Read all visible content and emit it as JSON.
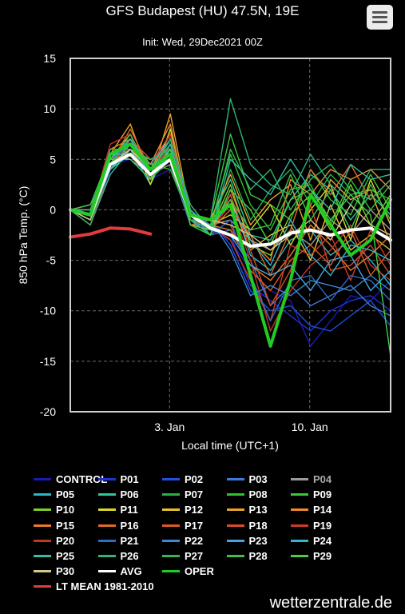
{
  "header": {
    "title": "GFS Budapest (HU) 47.5N, 19E",
    "subtitle": "Init: Wed, 29Dec2021 00Z"
  },
  "menu": {
    "icon": "hamburger-menu-icon"
  },
  "credit": "wetterzentrale.de",
  "chart_data": {
    "type": "line",
    "title": "GFS Budapest (HU) 47.5N, 19E",
    "subtitle": "Init: Wed, 29Dec2021 00Z",
    "xlabel": "Local time (UTC+1)",
    "ylabel": "850 hPa Temp. (°C)",
    "xlim": [
      "2021-12-29 01:00",
      "2022-01-14 01:00"
    ],
    "ylim": [
      -20,
      15
    ],
    "yticks": [
      15,
      10,
      5,
      0,
      -5,
      -10,
      -15,
      -20
    ],
    "xticks": [
      {
        "value": "2022-01-03",
        "label": "3. Jan"
      },
      {
        "value": "2022-01-10",
        "label": "10. Jan"
      }
    ],
    "grid": true,
    "legend_position": "bottom",
    "x": [
      "12-29",
      "12-30",
      "12-31",
      "01-01",
      "01-02",
      "01-03",
      "01-04",
      "01-05",
      "01-06",
      "01-07",
      "01-08",
      "01-09",
      "01-10",
      "01-11",
      "01-12",
      "01-13",
      "01-14"
    ],
    "oper": {
      "name": "OPER",
      "color": "#22cc22",
      "values": [
        0,
        -0.5,
        5.5,
        6.5,
        4.0,
        5.5,
        -0.5,
        -1.0,
        0.5,
        -6.5,
        -13.5,
        -7.0,
        1.5,
        -1.5,
        -4.5,
        -3.0,
        1.0
      ]
    },
    "avg": {
      "name": "AVG",
      "color": "#ffffff",
      "values": [
        0,
        -0.5,
        4.5,
        5.5,
        3.5,
        5.0,
        -0.5,
        -1.8,
        -2.5,
        -3.6,
        -3.4,
        -2.3,
        -2.0,
        -2.5,
        -2.0,
        -1.8,
        -3.0
      ]
    },
    "lt_mean": {
      "name": "LT MEAN 1981-2010",
      "color": "#e23b3b",
      "x": [
        "12-29",
        "12-30",
        "12-31",
        "01-01",
        "01-02"
      ],
      "values": [
        -2.7,
        -2.4,
        -1.8,
        -1.9,
        -2.4
      ]
    },
    "series": [
      {
        "name": "CONTROL",
        "color": "#1b1bb3",
        "values": [
          0,
          -1.0,
          4.5,
          5.0,
          3.0,
          4.0,
          -1.0,
          -2.0,
          -3.0,
          -6.0,
          -8.0,
          -9.0,
          -13.5,
          -11.0,
          -8.5,
          -9.0,
          -7.0
        ]
      },
      {
        "name": "P01",
        "color": "#1d33d6",
        "values": [
          0,
          -0.5,
          4.0,
          6.0,
          3.5,
          5.5,
          0.0,
          -1.5,
          -2.5,
          -7.5,
          -9.0,
          -10.5,
          -12.0,
          -10.0,
          -9.0,
          -8.5,
          -10.0
        ]
      },
      {
        "name": "P02",
        "color": "#2050e0",
        "values": [
          0,
          -1.0,
          5.0,
          5.5,
          4.0,
          6.0,
          -1.0,
          -1.0,
          -3.5,
          -8.0,
          -10.0,
          -9.5,
          -11.5,
          -12.0,
          -10.5,
          -9.0,
          -11.5
        ]
      },
      {
        "name": "P03",
        "color": "#3b7bd8",
        "values": [
          0,
          0.0,
          4.5,
          6.5,
          4.5,
          5.0,
          -0.5,
          -2.5,
          -2.0,
          -5.0,
          -9.5,
          -7.5,
          -9.5,
          -8.5,
          -7.5,
          -9.5,
          -10.5
        ]
      },
      {
        "name": "P04",
        "color": "#9a9a9a",
        "values": [
          0,
          -0.5,
          5.5,
          5.0,
          3.5,
          4.5,
          -1.5,
          -1.5,
          -1.0,
          -3.0,
          -4.0,
          -2.0,
          -3.5,
          -1.0,
          -2.5,
          0.0,
          -2.0
        ]
      },
      {
        "name": "P05",
        "color": "#29b8c8",
        "values": [
          0,
          -1.5,
          3.5,
          6.0,
          2.5,
          6.5,
          -1.0,
          -2.0,
          1.5,
          -4.5,
          -6.0,
          -3.0,
          -2.0,
          -4.5,
          -3.0,
          -5.0,
          -7.5
        ]
      },
      {
        "name": "P06",
        "color": "#2ec79a",
        "values": [
          0,
          -0.5,
          4.0,
          5.5,
          4.0,
          7.0,
          -0.5,
          -1.0,
          3.0,
          -2.5,
          -3.0,
          1.0,
          3.5,
          2.0,
          -1.0,
          1.5,
          -0.5
        ]
      },
      {
        "name": "P07",
        "color": "#27b04a",
        "values": [
          0,
          0.0,
          5.0,
          7.0,
          3.0,
          5.0,
          0.0,
          -2.5,
          4.0,
          -1.0,
          2.0,
          4.0,
          0.5,
          3.5,
          1.5,
          2.0,
          1.0
        ]
      },
      {
        "name": "P08",
        "color": "#30c030",
        "values": [
          0,
          -1.0,
          4.5,
          6.5,
          4.5,
          4.0,
          -1.0,
          -1.5,
          5.5,
          0.5,
          -2.0,
          2.0,
          2.5,
          -1.5,
          3.0,
          0.0,
          2.5
        ]
      },
      {
        "name": "P09",
        "color": "#38c838",
        "values": [
          0,
          -0.5,
          5.5,
          5.5,
          5.0,
          5.5,
          -0.5,
          -1.0,
          7.5,
          1.5,
          0.5,
          -1.0,
          4.0,
          1.0,
          -0.5,
          3.5,
          0.0
        ]
      },
      {
        "name": "P10",
        "color": "#7fcc2a",
        "values": [
          0,
          0.5,
          4.0,
          6.0,
          3.5,
          6.0,
          -1.5,
          -2.0,
          2.5,
          -3.5,
          -4.5,
          -0.5,
          1.5,
          -2.0,
          2.5,
          -1.5,
          1.5
        ]
      },
      {
        "name": "P11",
        "color": "#d8d82a",
        "values": [
          0,
          -0.5,
          5.0,
          7.5,
          2.5,
          8.0,
          -1.0,
          -1.5,
          -0.5,
          -2.0,
          0.5,
          -3.5,
          0.0,
          2.5,
          -3.0,
          3.0,
          -1.5
        ]
      },
      {
        "name": "P12",
        "color": "#e6c12e",
        "values": [
          0,
          -1.0,
          4.5,
          6.0,
          4.0,
          7.5,
          0.0,
          -2.0,
          1.0,
          -4.0,
          -2.5,
          -1.5,
          -5.0,
          0.5,
          -4.0,
          -2.5,
          -4.0
        ]
      },
      {
        "name": "P13",
        "color": "#e8a22c",
        "values": [
          0,
          0.0,
          5.5,
          8.5,
          3.0,
          9.5,
          -0.5,
          -1.0,
          3.5,
          -1.5,
          1.0,
          2.5,
          -3.0,
          3.0,
          1.0,
          2.0,
          -3.5
        ]
      },
      {
        "name": "P14",
        "color": "#eb8a2a",
        "values": [
          0,
          -0.5,
          6.0,
          7.0,
          4.5,
          8.5,
          -1.0,
          -2.5,
          2.0,
          -3.0,
          -5.0,
          3.0,
          1.5,
          4.0,
          3.0,
          4.0,
          2.0
        ]
      },
      {
        "name": "P15",
        "color": "#e87a2a",
        "values": [
          0,
          -1.0,
          5.0,
          5.5,
          3.5,
          6.5,
          -0.5,
          -1.5,
          -2.0,
          -5.5,
          -7.0,
          -4.5,
          -1.5,
          -3.5,
          -6.0,
          -4.5,
          -2.5
        ]
      },
      {
        "name": "P16",
        "color": "#e06a2a",
        "values": [
          0,
          0.5,
          4.5,
          8.0,
          4.0,
          7.0,
          0.0,
          -2.0,
          0.0,
          -2.5,
          -6.5,
          -2.0,
          4.0,
          1.5,
          4.5,
          1.0,
          3.0
        ]
      },
      {
        "name": "P17",
        "color": "#dc5a28",
        "values": [
          0,
          -0.5,
          5.5,
          6.5,
          3.0,
          6.0,
          -1.5,
          -1.0,
          -1.5,
          -6.0,
          -8.0,
          -5.0,
          -3.5,
          -5.5,
          -2.0,
          -6.5,
          -4.0
        ]
      },
      {
        "name": "P18",
        "color": "#d84c28",
        "values": [
          0,
          -1.5,
          4.0,
          7.0,
          5.0,
          5.5,
          -1.0,
          -2.5,
          1.5,
          -4.0,
          -9.5,
          -6.0,
          0.5,
          -6.0,
          -5.5,
          -3.5,
          -6.5
        ]
      },
      {
        "name": "P19",
        "color": "#cc3c28",
        "values": [
          0,
          0.0,
          5.0,
          6.0,
          4.5,
          7.5,
          -0.5,
          -1.5,
          -3.0,
          -7.0,
          -11.0,
          -3.5,
          -4.5,
          -2.5,
          -7.0,
          -2.0,
          -5.5
        ]
      },
      {
        "name": "P20",
        "color": "#c63428",
        "values": [
          0,
          -0.5,
          6.5,
          7.5,
          3.5,
          6.5,
          0.5,
          -2.0,
          0.5,
          -5.0,
          -12.0,
          -8.0,
          -5.5,
          -4.0,
          -1.5,
          -5.5,
          -7.0
        ]
      },
      {
        "name": "P21",
        "color": "#2d6cc8",
        "values": [
          0,
          -1.0,
          5.0,
          6.5,
          4.0,
          5.0,
          -1.5,
          -2.5,
          -1.0,
          -6.5,
          -11.0,
          -7.0,
          -6.5,
          -9.0,
          -6.5,
          -7.0,
          -9.0
        ]
      },
      {
        "name": "P22",
        "color": "#3a8ad6",
        "values": [
          0,
          0.5,
          4.5,
          7.0,
          3.0,
          6.0,
          -1.0,
          -1.0,
          -4.0,
          -8.5,
          -7.5,
          -8.5,
          -7.0,
          -7.5,
          -8.0,
          -6.5,
          -8.0
        ]
      },
      {
        "name": "P23",
        "color": "#45a3de",
        "values": [
          0,
          -0.5,
          5.5,
          5.5,
          4.5,
          7.0,
          0.0,
          -2.0,
          -2.5,
          -5.5,
          -6.5,
          -5.5,
          -8.0,
          -5.0,
          -4.5,
          -8.0,
          -6.0
        ]
      },
      {
        "name": "P24",
        "color": "#33b5d0",
        "values": [
          0,
          -1.0,
          4.0,
          6.5,
          3.5,
          5.5,
          -0.5,
          -1.5,
          0.5,
          -3.0,
          -5.5,
          -1.0,
          -4.5,
          -6.5,
          -3.5,
          -4.0,
          -5.0
        ]
      },
      {
        "name": "P25",
        "color": "#2fbfa8",
        "values": [
          0,
          0.0,
          5.0,
          7.0,
          4.0,
          6.5,
          -1.0,
          -2.5,
          5.0,
          3.0,
          1.5,
          5.0,
          2.0,
          0.0,
          4.5,
          3.0,
          3.5
        ]
      },
      {
        "name": "P26",
        "color": "#2fb577",
        "values": [
          0,
          -0.5,
          6.0,
          6.0,
          5.0,
          6.0,
          -0.5,
          -1.0,
          11.0,
          4.5,
          2.5,
          1.5,
          5.5,
          2.5,
          0.5,
          4.0,
          4.0
        ]
      },
      {
        "name": "P27",
        "color": "#32b855",
        "values": [
          0,
          -1.5,
          4.5,
          7.5,
          3.5,
          7.0,
          0.5,
          -2.0,
          6.0,
          2.0,
          4.0,
          0.0,
          3.0,
          4.5,
          2.0,
          1.0,
          3.0
        ]
      },
      {
        "name": "P28",
        "color": "#3cc04a",
        "values": [
          0,
          0.5,
          5.5,
          6.5,
          4.5,
          5.0,
          -1.0,
          -1.5,
          1.0,
          -2.0,
          -1.5,
          3.5,
          -1.0,
          2.0,
          -2.0,
          2.5,
          -1.0
        ]
      },
      {
        "name": "P29",
        "color": "#45d045",
        "values": [
          0,
          -0.5,
          5.0,
          5.0,
          3.0,
          6.0,
          -1.5,
          -2.5,
          2.0,
          0.0,
          -3.5,
          1.0,
          2.0,
          -1.0,
          1.5,
          -0.5,
          -14.5
        ]
      },
      {
        "name": "P30",
        "color": "#d2c98a",
        "values": [
          0,
          -1.0,
          4.5,
          6.0,
          4.0,
          5.5,
          -0.5,
          -1.0,
          -1.5,
          -2.5,
          -4.0,
          -2.5,
          -1.0,
          -3.0,
          0.5,
          -1.5,
          -2.5
        ]
      }
    ]
  },
  "legend": {
    "rows": [
      [
        {
          "label": "CONTROL",
          "color": "#1b1bb3"
        },
        {
          "label": "P01",
          "color": "#1d33d6"
        },
        {
          "label": "P02",
          "color": "#2050e0"
        },
        {
          "label": "P03",
          "color": "#3b7bd8"
        },
        {
          "label": "P04",
          "color": "#9a9a9a",
          "muted": true
        }
      ],
      [
        {
          "label": "P05",
          "color": "#29b8c8"
        },
        {
          "label": "P06",
          "color": "#2ec79a"
        },
        {
          "label": "P07",
          "color": "#27b04a"
        },
        {
          "label": "P08",
          "color": "#30c030"
        },
        {
          "label": "P09",
          "color": "#38c838"
        }
      ],
      [
        {
          "label": "P10",
          "color": "#7fcc2a"
        },
        {
          "label": "P11",
          "color": "#d8d82a"
        },
        {
          "label": "P12",
          "color": "#e6c12e"
        },
        {
          "label": "P13",
          "color": "#e8a22c"
        },
        {
          "label": "P14",
          "color": "#eb8a2a"
        }
      ],
      [
        {
          "label": "P15",
          "color": "#e87a2a"
        },
        {
          "label": "P16",
          "color": "#e06a2a"
        },
        {
          "label": "P17",
          "color": "#dc5a28"
        },
        {
          "label": "P18",
          "color": "#d84c28"
        },
        {
          "label": "P19",
          "color": "#cc3c28"
        }
      ],
      [
        {
          "label": "P20",
          "color": "#c63428"
        },
        {
          "label": "P21",
          "color": "#2d6cc8"
        },
        {
          "label": "P22",
          "color": "#3a8ad6"
        },
        {
          "label": "P23",
          "color": "#45a3de"
        },
        {
          "label": "P24",
          "color": "#33b5d0"
        }
      ],
      [
        {
          "label": "P25",
          "color": "#2fbfa8"
        },
        {
          "label": "P26",
          "color": "#2fb577"
        },
        {
          "label": "P27",
          "color": "#32b855"
        },
        {
          "label": "P28",
          "color": "#3cc04a"
        },
        {
          "label": "P29",
          "color": "#45d045"
        }
      ],
      [
        {
          "label": "P30",
          "color": "#d2c98a"
        },
        {
          "label": "AVG",
          "color": "#ffffff"
        },
        {
          "label": "OPER",
          "color": "#22cc22"
        }
      ],
      [
        {
          "label": "LT MEAN 1981-2010",
          "color": "#e23b3b",
          "wide": true
        }
      ]
    ]
  }
}
